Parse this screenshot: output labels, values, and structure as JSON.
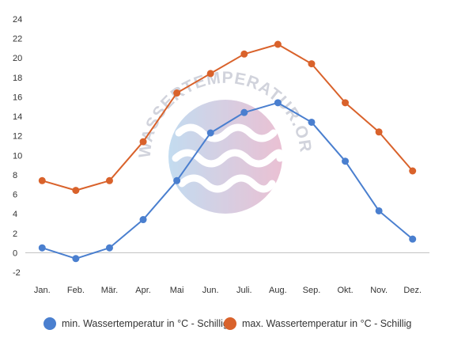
{
  "chart_data": {
    "type": "line",
    "categories": [
      "Jan.",
      "Feb.",
      "Mär.",
      "Apr.",
      "Mai",
      "Jun.",
      "Juli.",
      "Aug.",
      "Sep.",
      "Okt.",
      "Nov.",
      "Dez."
    ],
    "series": [
      {
        "name": "min. Wassertemperatur in °C - Schillig",
        "color": "#4a7fcf",
        "values": [
          0.5,
          -0.6,
          0.5,
          3.4,
          7.4,
          12.3,
          14.4,
          15.4,
          13.4,
          9.4,
          4.3,
          1.4
        ]
      },
      {
        "name": "max. Wassertemperatur in °C - Schillig",
        "color": "#d9622b",
        "values": [
          7.4,
          6.4,
          7.4,
          11.4,
          16.4,
          18.4,
          20.4,
          21.4,
          19.4,
          15.4,
          12.4,
          8.4
        ]
      }
    ],
    "yticks": [
      "24",
      "22",
      "20",
      "18",
      "16",
      "14",
      "12",
      "10",
      "8",
      "6",
      "4",
      "2",
      "0",
      "-2"
    ],
    "ylim": [
      -2,
      24
    ],
    "grid": false,
    "legend": "bottom",
    "watermark": "WASSERTEMPERATUR.ORG"
  }
}
